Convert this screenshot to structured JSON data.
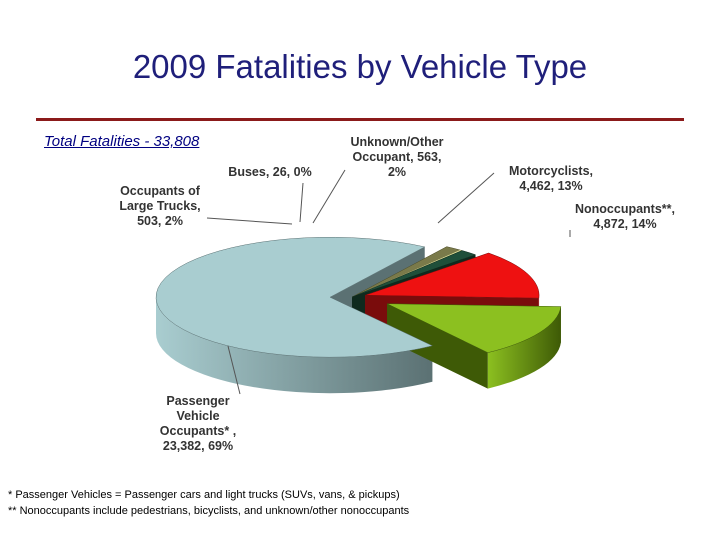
{
  "title": "2009 Fatalities by Vehicle Type",
  "total_label": "Total Fatalities  - 33,808",
  "chart_data": {
    "type": "pie",
    "title": "2009 Fatalities by Vehicle Type",
    "slices": [
      {
        "lines": [
          "Passenger",
          "Vehicle",
          "Occupants* ,",
          "23,382, 69%"
        ],
        "value": 23382,
        "percent": 69,
        "color": "#a9cdd0",
        "dark": "#5b7173",
        "exploded": true
      },
      {
        "lines": [
          "Occupants of",
          "Large Trucks,",
          "503, 2%"
        ],
        "value": 503,
        "percent": 2,
        "color": "#7a7a4a",
        "dark": "#4d4d2a",
        "exploded": false
      },
      {
        "lines": [
          "Buses, 26, 0%"
        ],
        "value": 26,
        "percent": 0,
        "color": "#e6e6a0",
        "dark": "#8a8a55",
        "exploded": false
      },
      {
        "lines": [
          "Unknown/Other",
          "Occupant, 563,",
          "2%"
        ],
        "value": 563,
        "percent": 2,
        "color": "#1f4f3a",
        "dark": "#0f2a1e",
        "exploded": false
      },
      {
        "lines": [
          "Motorcyclists,",
          "4,462, 13%"
        ],
        "value": 4462,
        "percent": 13,
        "color": "#ee1111",
        "dark": "#7a0c0c",
        "exploded": true
      },
      {
        "lines": [
          "Nonoccupants**,",
          "4,872, 14%"
        ],
        "value": 4872,
        "percent": 14,
        "color": "#8cc020",
        "dark": "#3e5a06",
        "exploded": true
      }
    ]
  },
  "footnotes": [
    "* Passenger Vehicles = Passenger cars and light trucks (SUVs, vans, & pickups)",
    "** Nonoccupants include pedestrians, bicyclists, and unknown/other nonoccupants"
  ]
}
